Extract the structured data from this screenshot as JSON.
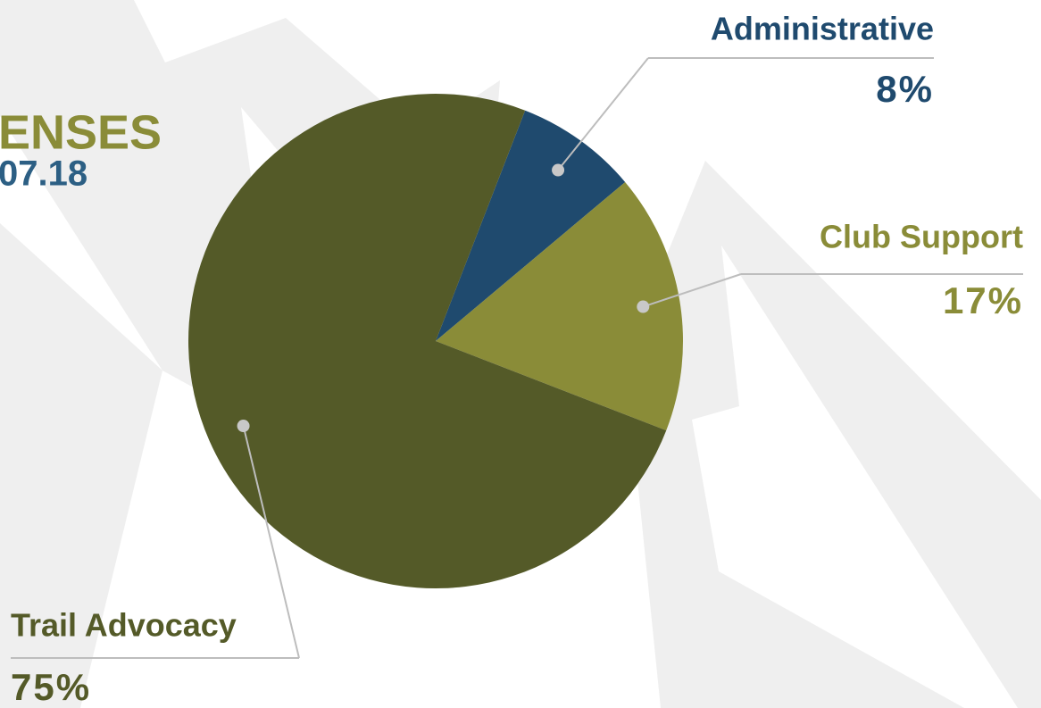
{
  "chart_data": {
    "type": "pie",
    "title": "ENSES",
    "subtitle": "07.18",
    "categories": [
      "Administrative",
      "Club Support",
      "Trail Advocacy"
    ],
    "values": [
      8,
      17,
      75
    ],
    "value_labels": [
      "8%",
      "17%",
      "75%"
    ],
    "colors": [
      "#1f4a6e",
      "#8a8c38",
      "#545a28"
    ]
  }
}
